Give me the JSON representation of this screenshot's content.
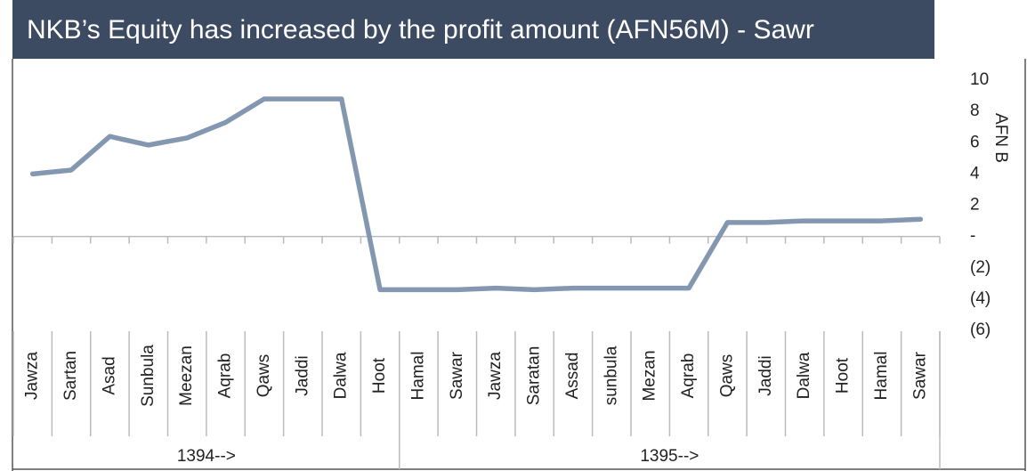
{
  "chart_data": {
    "type": "line",
    "title": "NKB’s Equity has increased by the profit amount (AFN56M) - Sawr",
    "y_axis_label": "AFN B",
    "categories": [
      "Jawza",
      "Sartan",
      "Asad",
      "Sunbula",
      "Meezan",
      "Aqrab",
      "Qaws",
      "Jaddi",
      "Dalwa",
      "Hoot",
      "Hamal",
      "Sawar",
      "Jawza",
      "Saratan",
      "Assad",
      "sunbula",
      "Mezan",
      "Aqrab",
      "Qaws",
      "Jaddi",
      "Dalwa",
      "Hoot",
      "Hamal",
      "Sawar"
    ],
    "category_groups": [
      {
        "label": "1394-->",
        "count": 10
      },
      {
        "label": "1395-->",
        "count": 14
      }
    ],
    "values": [
      4.0,
      4.25,
      6.4,
      5.85,
      6.3,
      7.3,
      8.8,
      8.8,
      8.8,
      -3.4,
      -3.4,
      -3.4,
      -3.3,
      -3.4,
      -3.3,
      -3.3,
      -3.3,
      -3.3,
      0.9,
      0.9,
      1.0,
      1.0,
      1.0,
      1.1
    ],
    "color": "#8497b0",
    "ylim": [
      -6,
      10
    ],
    "yticks": [
      {
        "value": -6,
        "label": "(6)"
      },
      {
        "value": -4,
        "label": "(4)"
      },
      {
        "value": -2,
        "label": "(2)"
      },
      {
        "value": 0,
        "label": "-"
      },
      2,
      4,
      6,
      8,
      10
    ]
  }
}
